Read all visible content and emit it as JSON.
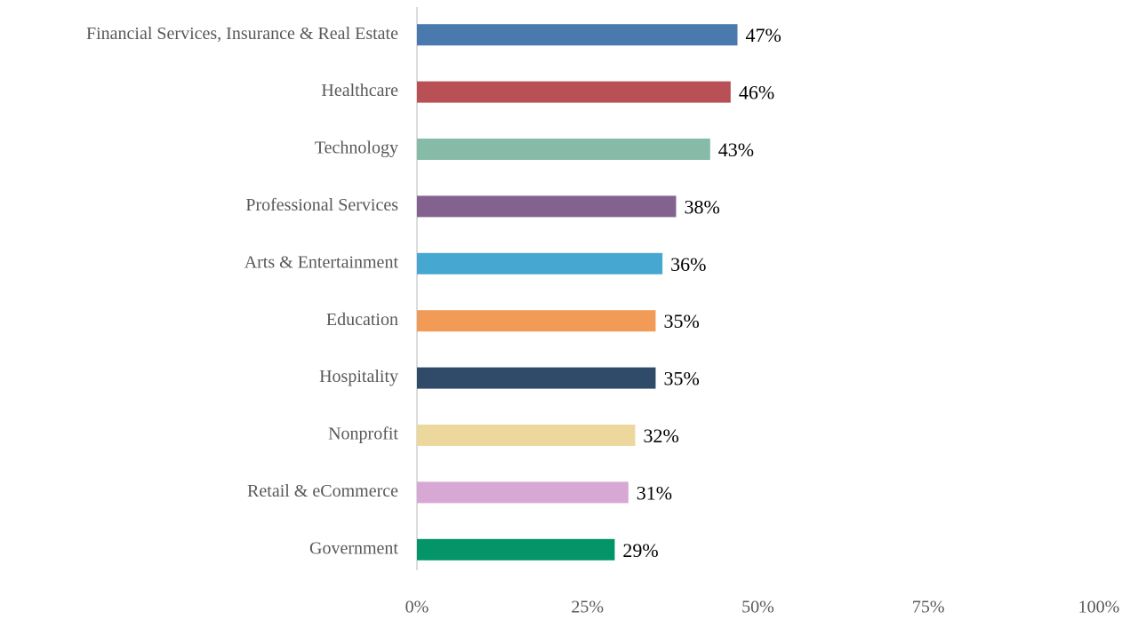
{
  "chart_data": {
    "type": "bar",
    "orientation": "horizontal",
    "categories": [
      "Financial Services, Insurance & Real Estate",
      "Healthcare",
      "Technology",
      "Professional Services",
      "Arts & Entertainment",
      "Education",
      "Hospitality",
      "Nonprofit",
      "Retail & eCommerce",
      "Government"
    ],
    "values": [
      47,
      46,
      43,
      38,
      36,
      35,
      35,
      32,
      31,
      29
    ],
    "value_labels": [
      "47%",
      "46%",
      "43%",
      "38%",
      "36%",
      "35%",
      "35%",
      "32%",
      "31%",
      "29%"
    ],
    "colors": [
      "#4a7aad",
      "#b85055",
      "#86bba8",
      "#83628f",
      "#46a8d0",
      "#f29b57",
      "#2f4b69",
      "#ecd79d",
      "#d6a8d3",
      "#039467"
    ],
    "xlim": [
      0,
      100
    ],
    "xticks": [
      {
        "value": 0,
        "label": "0%"
      },
      {
        "value": 25,
        "label": "25%"
      },
      {
        "value": 50,
        "label": "50%"
      },
      {
        "value": 75,
        "label": "75%"
      },
      {
        "value": 100,
        "label": "100%"
      }
    ],
    "grid": false
  }
}
